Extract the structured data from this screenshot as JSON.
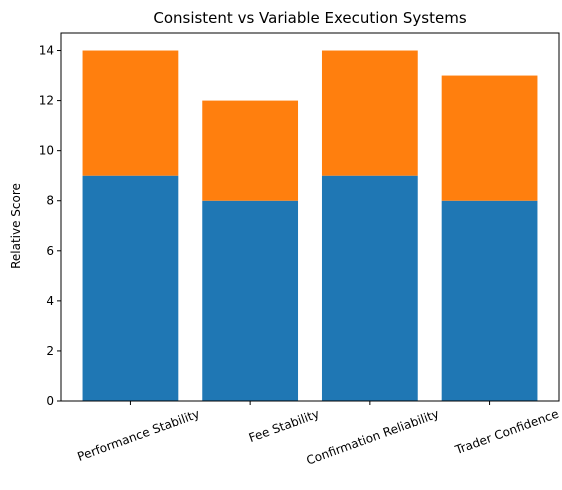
{
  "chart_data": {
    "type": "bar",
    "stacked": true,
    "title": "Consistent vs Variable Execution Systems",
    "xlabel": "",
    "ylabel": "Relative Score",
    "categories": [
      "Performance Stability",
      "Fee Stability",
      "Confirmation Reliability",
      "Trader Confidence"
    ],
    "series": [
      {
        "values": [
          9,
          8,
          9,
          8
        ],
        "color": "#1f77b4"
      },
      {
        "values": [
          5,
          4,
          5,
          5
        ],
        "color": "#ff7f0e"
      }
    ],
    "ylim": [
      0,
      14.7
    ],
    "yticks": [
      0,
      2,
      4,
      6,
      8,
      10,
      12,
      14
    ],
    "xtick_rotation": 20,
    "grid": false,
    "legend": "none"
  }
}
